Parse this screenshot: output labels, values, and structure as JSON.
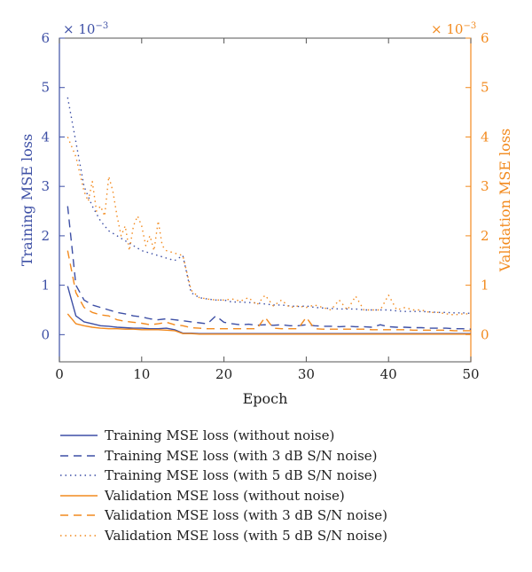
{
  "chart_data": {
    "type": "line",
    "xlabel": "Epoch",
    "ylabel_left": "Training MSE loss",
    "ylabel_right": "Validation MSE loss",
    "multiplier_left": "× 10",
    "multiplier_right": "× 10",
    "multiplier_exp": "−3",
    "xlim": [
      0,
      50
    ],
    "ylim": [
      -0.55,
      6
    ],
    "xticks": [
      0,
      10,
      20,
      30,
      40,
      50
    ],
    "yticks": [
      0,
      1,
      2,
      3,
      4,
      5,
      6
    ],
    "grid": false,
    "legend_position": "below plot",
    "colors": {
      "training": "#3d4fa5",
      "validation": "#f28a1e",
      "axis": "#555555"
    },
    "series": [
      {
        "name": "Training MSE loss (without noise)",
        "axis": "left",
        "color": "#3d4fa5",
        "style": "solid",
        "x": [
          1,
          2,
          3,
          4,
          5,
          6,
          7,
          8,
          9,
          10,
          11,
          12,
          13,
          14,
          15,
          16,
          17,
          18,
          19,
          20,
          22,
          25,
          30,
          35,
          40,
          45,
          50
        ],
        "y": [
          0.98,
          0.38,
          0.26,
          0.22,
          0.18,
          0.17,
          0.15,
          0.14,
          0.13,
          0.13,
          0.12,
          0.12,
          0.13,
          0.1,
          0.03,
          0.03,
          0.02,
          0.02,
          0.02,
          0.02,
          0.02,
          0.02,
          0.02,
          0.02,
          0.02,
          0.02,
          0.02
        ]
      },
      {
        "name": "Training MSE loss (with 3 dB S/N noise)",
        "axis": "left",
        "color": "#3d4fa5",
        "style": "dashed",
        "x": [
          1,
          2,
          3,
          4,
          5,
          6,
          7,
          8,
          9,
          10,
          11,
          12,
          13,
          14,
          15,
          16,
          17,
          18,
          19,
          20,
          21,
          22,
          23,
          24,
          25,
          26,
          27,
          28,
          29,
          30,
          31,
          32,
          33,
          34,
          35,
          36,
          37,
          38,
          39,
          40,
          41,
          42,
          43,
          44,
          45,
          46,
          47,
          48,
          49,
          50
        ],
        "y": [
          2.6,
          1.0,
          0.7,
          0.6,
          0.55,
          0.5,
          0.45,
          0.42,
          0.38,
          0.36,
          0.32,
          0.3,
          0.32,
          0.3,
          0.28,
          0.26,
          0.24,
          0.22,
          0.38,
          0.25,
          0.22,
          0.2,
          0.21,
          0.19,
          0.2,
          0.19,
          0.2,
          0.18,
          0.18,
          0.2,
          0.18,
          0.17,
          0.17,
          0.16,
          0.17,
          0.16,
          0.16,
          0.15,
          0.2,
          0.16,
          0.15,
          0.15,
          0.14,
          0.14,
          0.13,
          0.13,
          0.13,
          0.12,
          0.12,
          0.11
        ]
      },
      {
        "name": "Training MSE loss (with 5 dB S/N noise)",
        "axis": "left",
        "color": "#3d4fa5",
        "style": "dotted",
        "x": [
          1,
          2,
          3,
          4,
          5,
          6,
          7,
          8,
          9,
          10,
          11,
          12,
          13,
          14,
          15,
          16,
          17,
          18,
          19,
          20,
          21,
          22,
          23,
          24,
          25,
          26,
          27,
          28,
          29,
          30,
          31,
          32,
          33,
          34,
          35,
          36,
          37,
          38,
          39,
          40,
          41,
          42,
          43,
          44,
          45,
          46,
          47,
          48,
          49,
          50
        ],
        "y": [
          4.8,
          3.9,
          3.0,
          2.6,
          2.3,
          2.1,
          2.0,
          1.9,
          1.8,
          1.7,
          1.65,
          1.6,
          1.55,
          1.5,
          1.6,
          0.85,
          0.75,
          0.72,
          0.7,
          0.7,
          0.66,
          0.66,
          0.65,
          0.64,
          0.62,
          0.6,
          0.6,
          0.58,
          0.57,
          0.58,
          0.55,
          0.54,
          0.53,
          0.52,
          0.52,
          0.52,
          0.5,
          0.5,
          0.5,
          0.5,
          0.48,
          0.47,
          0.47,
          0.47,
          0.46,
          0.45,
          0.45,
          0.44,
          0.44,
          0.43
        ]
      },
      {
        "name": "Validation MSE loss (without noise)",
        "axis": "right",
        "color": "#f28a1e",
        "style": "solid",
        "x": [
          1,
          2,
          3,
          4,
          5,
          6,
          7,
          8,
          9,
          10,
          11,
          12,
          13,
          14,
          15,
          16,
          17,
          18,
          19,
          20,
          25,
          30,
          35,
          40,
          45,
          50
        ],
        "y": [
          0.42,
          0.22,
          0.18,
          0.15,
          0.13,
          0.12,
          0.12,
          0.11,
          0.11,
          0.1,
          0.1,
          0.1,
          0.09,
          0.08,
          0.02,
          0.02,
          0.01,
          0.01,
          0.01,
          0.01,
          0.01,
          0.01,
          0.01,
          0.01,
          0.01,
          0.01
        ]
      },
      {
        "name": "Validation MSE loss (with 3 dB S/N noise)",
        "axis": "right",
        "color": "#f28a1e",
        "style": "dashed",
        "x": [
          1,
          2,
          3,
          4,
          5,
          6,
          7,
          8,
          9,
          10,
          11,
          12,
          13,
          14,
          15,
          16,
          17,
          18,
          19,
          20,
          21,
          22,
          23,
          24,
          25,
          26,
          27,
          28,
          29,
          30,
          31,
          32,
          33,
          34,
          35,
          36,
          37,
          38,
          39,
          40,
          41,
          42,
          43,
          44,
          45,
          46,
          47,
          48,
          49,
          50
        ],
        "y": [
          1.7,
          0.85,
          0.55,
          0.45,
          0.4,
          0.38,
          0.3,
          0.27,
          0.25,
          0.23,
          0.2,
          0.22,
          0.25,
          0.2,
          0.18,
          0.14,
          0.13,
          0.12,
          0.12,
          0.12,
          0.12,
          0.12,
          0.12,
          0.12,
          0.35,
          0.13,
          0.12,
          0.12,
          0.12,
          0.35,
          0.12,
          0.11,
          0.11,
          0.11,
          0.11,
          0.11,
          0.11,
          0.1,
          0.1,
          0.1,
          0.1,
          0.1,
          0.09,
          0.09,
          0.09,
          0.09,
          0.09,
          0.08,
          0.08,
          0.08
        ]
      },
      {
        "name": "Validation MSE loss (with 5 dB S/N noise)",
        "axis": "right",
        "color": "#f28a1e",
        "style": "dotted",
        "x": [
          1,
          2,
          3,
          3.5,
          4,
          4.5,
          5,
          5.5,
          6,
          6.5,
          7,
          7.5,
          8,
          8.5,
          9,
          9.5,
          10,
          10.5,
          11,
          11.5,
          12,
          12.5,
          13,
          14,
          15,
          16,
          17,
          18,
          19,
          20,
          21,
          22,
          23,
          24,
          25,
          26,
          27,
          28,
          29,
          30,
          31,
          32,
          33,
          34,
          35,
          36,
          37,
          38,
          39,
          40,
          41,
          42,
          43,
          44,
          45,
          46,
          47,
          48,
          49,
          50
        ],
        "y": [
          4.0,
          3.6,
          2.9,
          2.7,
          3.1,
          2.5,
          2.6,
          2.4,
          3.2,
          2.9,
          2.4,
          2.0,
          2.2,
          1.7,
          2.2,
          2.4,
          2.2,
          1.8,
          2.0,
          1.7,
          2.3,
          1.8,
          1.7,
          1.65,
          1.6,
          0.9,
          0.75,
          0.72,
          0.7,
          0.7,
          0.72,
          0.68,
          0.75,
          0.6,
          0.8,
          0.58,
          0.7,
          0.55,
          0.58,
          0.55,
          0.6,
          0.55,
          0.5,
          0.7,
          0.5,
          0.78,
          0.5,
          0.5,
          0.5,
          0.8,
          0.5,
          0.55,
          0.5,
          0.5,
          0.45,
          0.45,
          0.42,
          0.4,
          0.42,
          0.42
        ]
      }
    ]
  }
}
